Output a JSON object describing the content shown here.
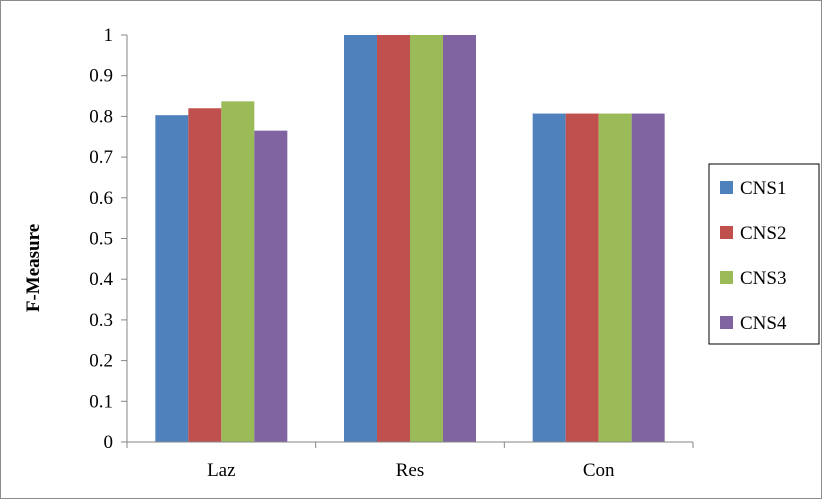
{
  "chart_data": {
    "type": "bar",
    "categories": [
      "Laz",
      "Res",
      "Con"
    ],
    "series": [
      {
        "name": "CNS1",
        "color": "#4f81bd",
        "values": [
          0.803,
          1.0,
          0.807
        ]
      },
      {
        "name": "CNS2",
        "color": "#c0504d",
        "values": [
          0.82,
          1.0,
          0.807
        ]
      },
      {
        "name": "CNS3",
        "color": "#9bbb59",
        "values": [
          0.837,
          1.0,
          0.807
        ]
      },
      {
        "name": "CNS4",
        "color": "#8064a2",
        "values": [
          0.765,
          1.0,
          0.807
        ]
      }
    ],
    "title": "",
    "xlabel": "",
    "ylabel": "F-Measure",
    "ylim": [
      0,
      1
    ],
    "yticks": [
      "0",
      "0.1",
      "0.2",
      "0.3",
      "0.4",
      "0.5",
      "0.6",
      "0.7",
      "0.8",
      "0.9",
      "1"
    ],
    "grid": false,
    "legend_position": "right"
  }
}
